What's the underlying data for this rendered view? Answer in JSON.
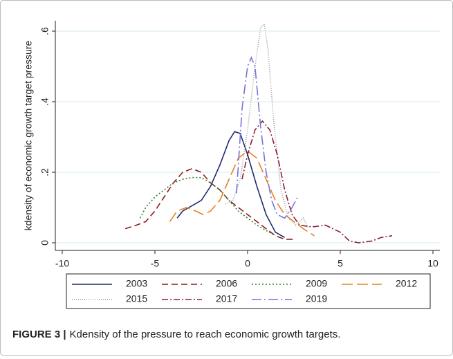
{
  "chart_data": {
    "type": "line",
    "ylabel": "kdensity of economic growth target pressure",
    "xlim": [
      -10,
      10
    ],
    "xticks": [
      -10,
      -5,
      0,
      5,
      10
    ],
    "ylim": [
      0,
      0.6
    ],
    "yticks": [
      0,
      {
        "value": 0.2,
        "label": ".2"
      },
      {
        "value": 0.4,
        "label": ".4"
      },
      {
        "value": 0.6,
        "label": ".6"
      }
    ],
    "grid": true,
    "legend": "bottom",
    "series": [
      {
        "name": "2003",
        "color": "#1c2a6e",
        "dash": "none",
        "x": [
          -3.8,
          -3.5,
          -3,
          -2.5,
          -2,
          -1.5,
          -1,
          -0.7,
          -0.4,
          0,
          0.5,
          1,
          1.5,
          2
        ],
        "values": [
          0.07,
          0.09,
          0.105,
          0.12,
          0.16,
          0.22,
          0.29,
          0.315,
          0.31,
          0.25,
          0.16,
          0.08,
          0.03,
          0.015
        ]
      },
      {
        "name": "2006",
        "color": "#8b1a1a",
        "dash": "9 5",
        "x": [
          -6.6,
          -6,
          -5.5,
          -5,
          -4.5,
          -4,
          -3.5,
          -3,
          -2.5,
          -2,
          -1.5,
          -1,
          -0.5,
          0,
          0.5,
          1,
          1.5,
          2,
          2.5
        ],
        "values": [
          0.04,
          0.05,
          0.06,
          0.09,
          0.13,
          0.17,
          0.2,
          0.21,
          0.2,
          0.17,
          0.15,
          0.12,
          0.1,
          0.08,
          0.06,
          0.04,
          0.02,
          0.01,
          0.01
        ]
      },
      {
        "name": "2009",
        "color": "#2e7d32",
        "dash": "2 3",
        "x": [
          -5.8,
          -5.5,
          -5,
          -4.5,
          -4,
          -3.5,
          -3,
          -2.5,
          -2,
          -1.5,
          -1,
          -0.5,
          0,
          0.5,
          1,
          1.5
        ],
        "values": [
          0.07,
          0.1,
          0.13,
          0.15,
          0.17,
          0.18,
          0.185,
          0.185,
          0.17,
          0.15,
          0.12,
          0.09,
          0.07,
          0.05,
          0.035,
          0.02
        ]
      },
      {
        "name": "2012",
        "color": "#e8801e",
        "dash": "16 6",
        "x": [
          -4.2,
          -3.8,
          -3.3,
          -2.8,
          -2.4,
          -2,
          -1.5,
          -1,
          -0.5,
          0,
          0.5,
          1,
          1.5,
          2,
          2.5,
          3,
          3.6
        ],
        "values": [
          0.06,
          0.09,
          0.1,
          0.09,
          0.08,
          0.09,
          0.12,
          0.18,
          0.24,
          0.26,
          0.24,
          0.18,
          0.12,
          0.08,
          0.06,
          0.04,
          0.02
        ]
      },
      {
        "name": "2015",
        "color": "#9a9a9a",
        "dash": "1 2",
        "x": [
          -1.2,
          -0.8,
          -0.4,
          0,
          0.4,
          0.7,
          0.9,
          1.1,
          1.4,
          1.8,
          2.2,
          2.6,
          3,
          3.3
        ],
        "values": [
          0.11,
          0.12,
          0.18,
          0.32,
          0.5,
          0.61,
          0.62,
          0.55,
          0.35,
          0.15,
          0.07,
          0.05,
          0.07,
          0.04
        ]
      },
      {
        "name": "2017",
        "color": "#8b1a3c",
        "dash": "9 3 2 3",
        "x": [
          -0.3,
          0,
          0.4,
          0.8,
          1.2,
          1.6,
          2,
          2.4,
          2.8,
          3.5,
          4.2,
          5,
          5.5,
          6,
          6.7,
          7.2,
          7.8
        ],
        "values": [
          0.18,
          0.25,
          0.32,
          0.345,
          0.32,
          0.25,
          0.15,
          0.08,
          0.05,
          0.045,
          0.05,
          0.03,
          0.005,
          0,
          0.005,
          0.015,
          0.02
        ]
      },
      {
        "name": "2019",
        "color": "#7474dc",
        "dash": "14 4 2 4",
        "x": [
          -0.6,
          -0.3,
          0,
          0.2,
          0.4,
          0.7,
          1,
          1.3,
          1.6,
          2,
          2.4,
          2.7
        ],
        "values": [
          0.14,
          0.38,
          0.5,
          0.525,
          0.5,
          0.33,
          0.2,
          0.12,
          0.08,
          0.07,
          0.1,
          0.13
        ]
      }
    ]
  },
  "caption": {
    "label": "FIGURE 3 |",
    "text": "Kdensity of the pressure to reach economic growth targets."
  }
}
